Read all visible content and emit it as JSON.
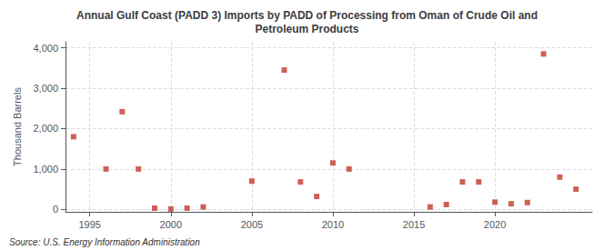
{
  "chart_data": {
    "type": "scatter",
    "title": "Annual Gulf Coast (PADD 3) Imports by PADD of Processing from Oman of Crude Oil and\nPetroleum Products",
    "ylabel": "Thousand Barrels",
    "annotations": [
      "Source: U.S. Energy Information Administration"
    ],
    "x": [
      1994,
      1996,
      1997,
      1998,
      1999,
      2000,
      2001,
      2002,
      2005,
      2007,
      2008,
      2009,
      2010,
      2011,
      2016,
      2017,
      2018,
      2019,
      2020,
      2021,
      2022,
      2023,
      2024,
      2025
    ],
    "values": [
      1800,
      1000,
      2420,
      1000,
      30,
      10,
      30,
      60,
      700,
      3450,
      680,
      320,
      1150,
      1000,
      60,
      120,
      680,
      680,
      180,
      140,
      170,
      3850,
      800,
      500
    ],
    "color": "#c0392b",
    "marker": "square",
    "xlim": [
      1993.5,
      2026
    ],
    "xticks": [
      1995,
      2000,
      2005,
      2010,
      2015,
      2020
    ],
    "ylim": [
      -60,
      4150
    ],
    "yticks": [
      0,
      {
        "value": 1000,
        "label": "1,000"
      },
      {
        "value": 2000,
        "label": "2,000"
      },
      {
        "value": 3000,
        "label": "3,000"
      },
      {
        "value": 4000,
        "label": "4,000"
      }
    ],
    "grid": true
  }
}
